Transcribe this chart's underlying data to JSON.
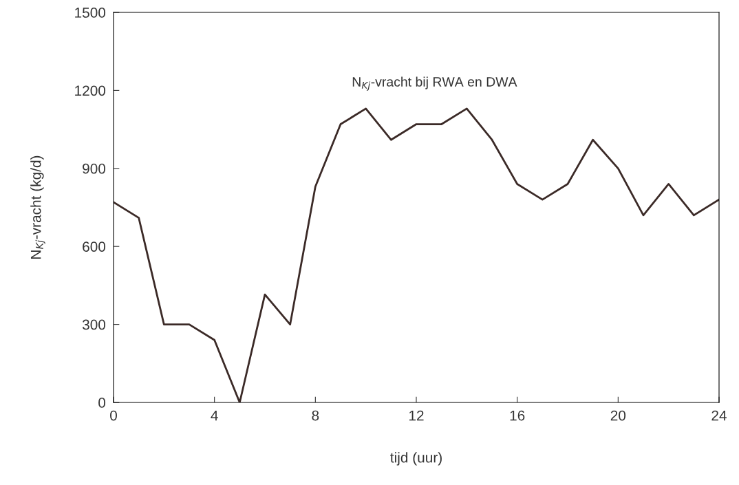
{
  "chart_data": {
    "type": "line",
    "xlabel": "tijd (uur)",
    "ylabel": "N$_{Kj}$-vracht (kg/d)",
    "annotations": [
      "N$_{Kj}$-vracht bij RWA en DWA"
    ],
    "x": [
      0,
      1,
      2,
      3,
      4,
      5,
      6,
      7,
      8,
      9,
      10,
      11,
      12,
      13,
      14,
      15,
      16,
      17,
      18,
      19,
      20,
      21,
      22,
      23,
      24
    ],
    "series": [
      {
        "color": "#3b2a27",
        "values": [
          770,
          710,
          300,
          300,
          240,
          0,
          415,
          300,
          830,
          1070,
          1130,
          1010,
          1070,
          1070,
          1130,
          1010,
          840,
          780,
          840,
          1010,
          900,
          720,
          840,
          720,
          780
        ]
      }
    ],
    "xlim": [
      0,
      24
    ],
    "xticks": [
      0,
      4,
      8,
      12,
      16,
      20,
      24
    ],
    "ylim": [
      0,
      1500
    ],
    "yticks": [
      0,
      300,
      600,
      900,
      1200,
      1500
    ],
    "grid": false,
    "legend": false,
    "marker": "none",
    "line_style": "solid"
  }
}
